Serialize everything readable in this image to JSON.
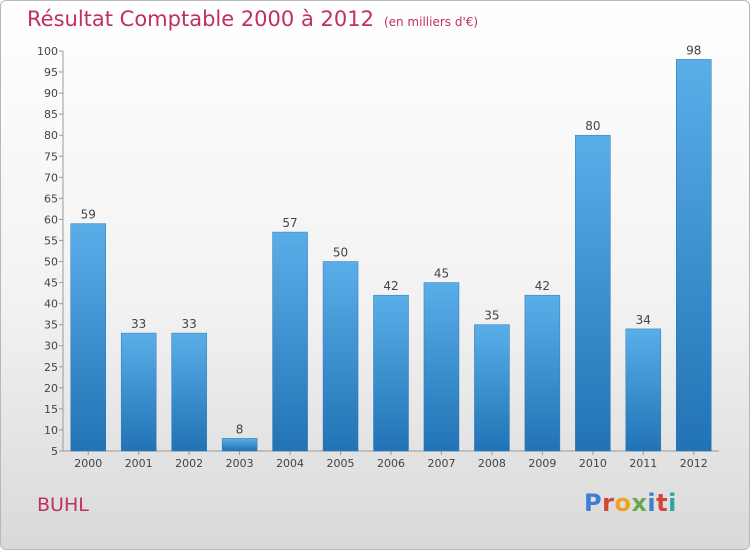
{
  "title": "Résultat Comptable 2000 à 2012",
  "subtitle": "(en milliers d'€)",
  "town": "BUHL",
  "logo": {
    "p": "P",
    "r": "r",
    "o": "o",
    "x": "x",
    "i1": "i",
    "t": "t",
    "i2": "i"
  },
  "colors": {
    "bar_top": "#5aaee8",
    "bar_bottom": "#2173b5",
    "title": "#c0305a"
  },
  "chart_data": {
    "type": "bar",
    "title": "Résultat Comptable 2000 à 2012",
    "ylabel": "(en milliers d'€)",
    "xlabel": "",
    "categories": [
      "2000",
      "2001",
      "2002",
      "2003",
      "2004",
      "2005",
      "2006",
      "2007",
      "2008",
      "2009",
      "2010",
      "2011",
      "2012"
    ],
    "values": [
      59,
      33,
      33,
      8,
      57,
      50,
      42,
      45,
      35,
      42,
      80,
      34,
      98
    ],
    "ylim": [
      5,
      100
    ],
    "yticks": [
      5,
      10,
      15,
      20,
      25,
      30,
      35,
      40,
      45,
      50,
      55,
      60,
      65,
      70,
      75,
      80,
      85,
      90,
      95,
      100
    ],
    "grid": false
  }
}
